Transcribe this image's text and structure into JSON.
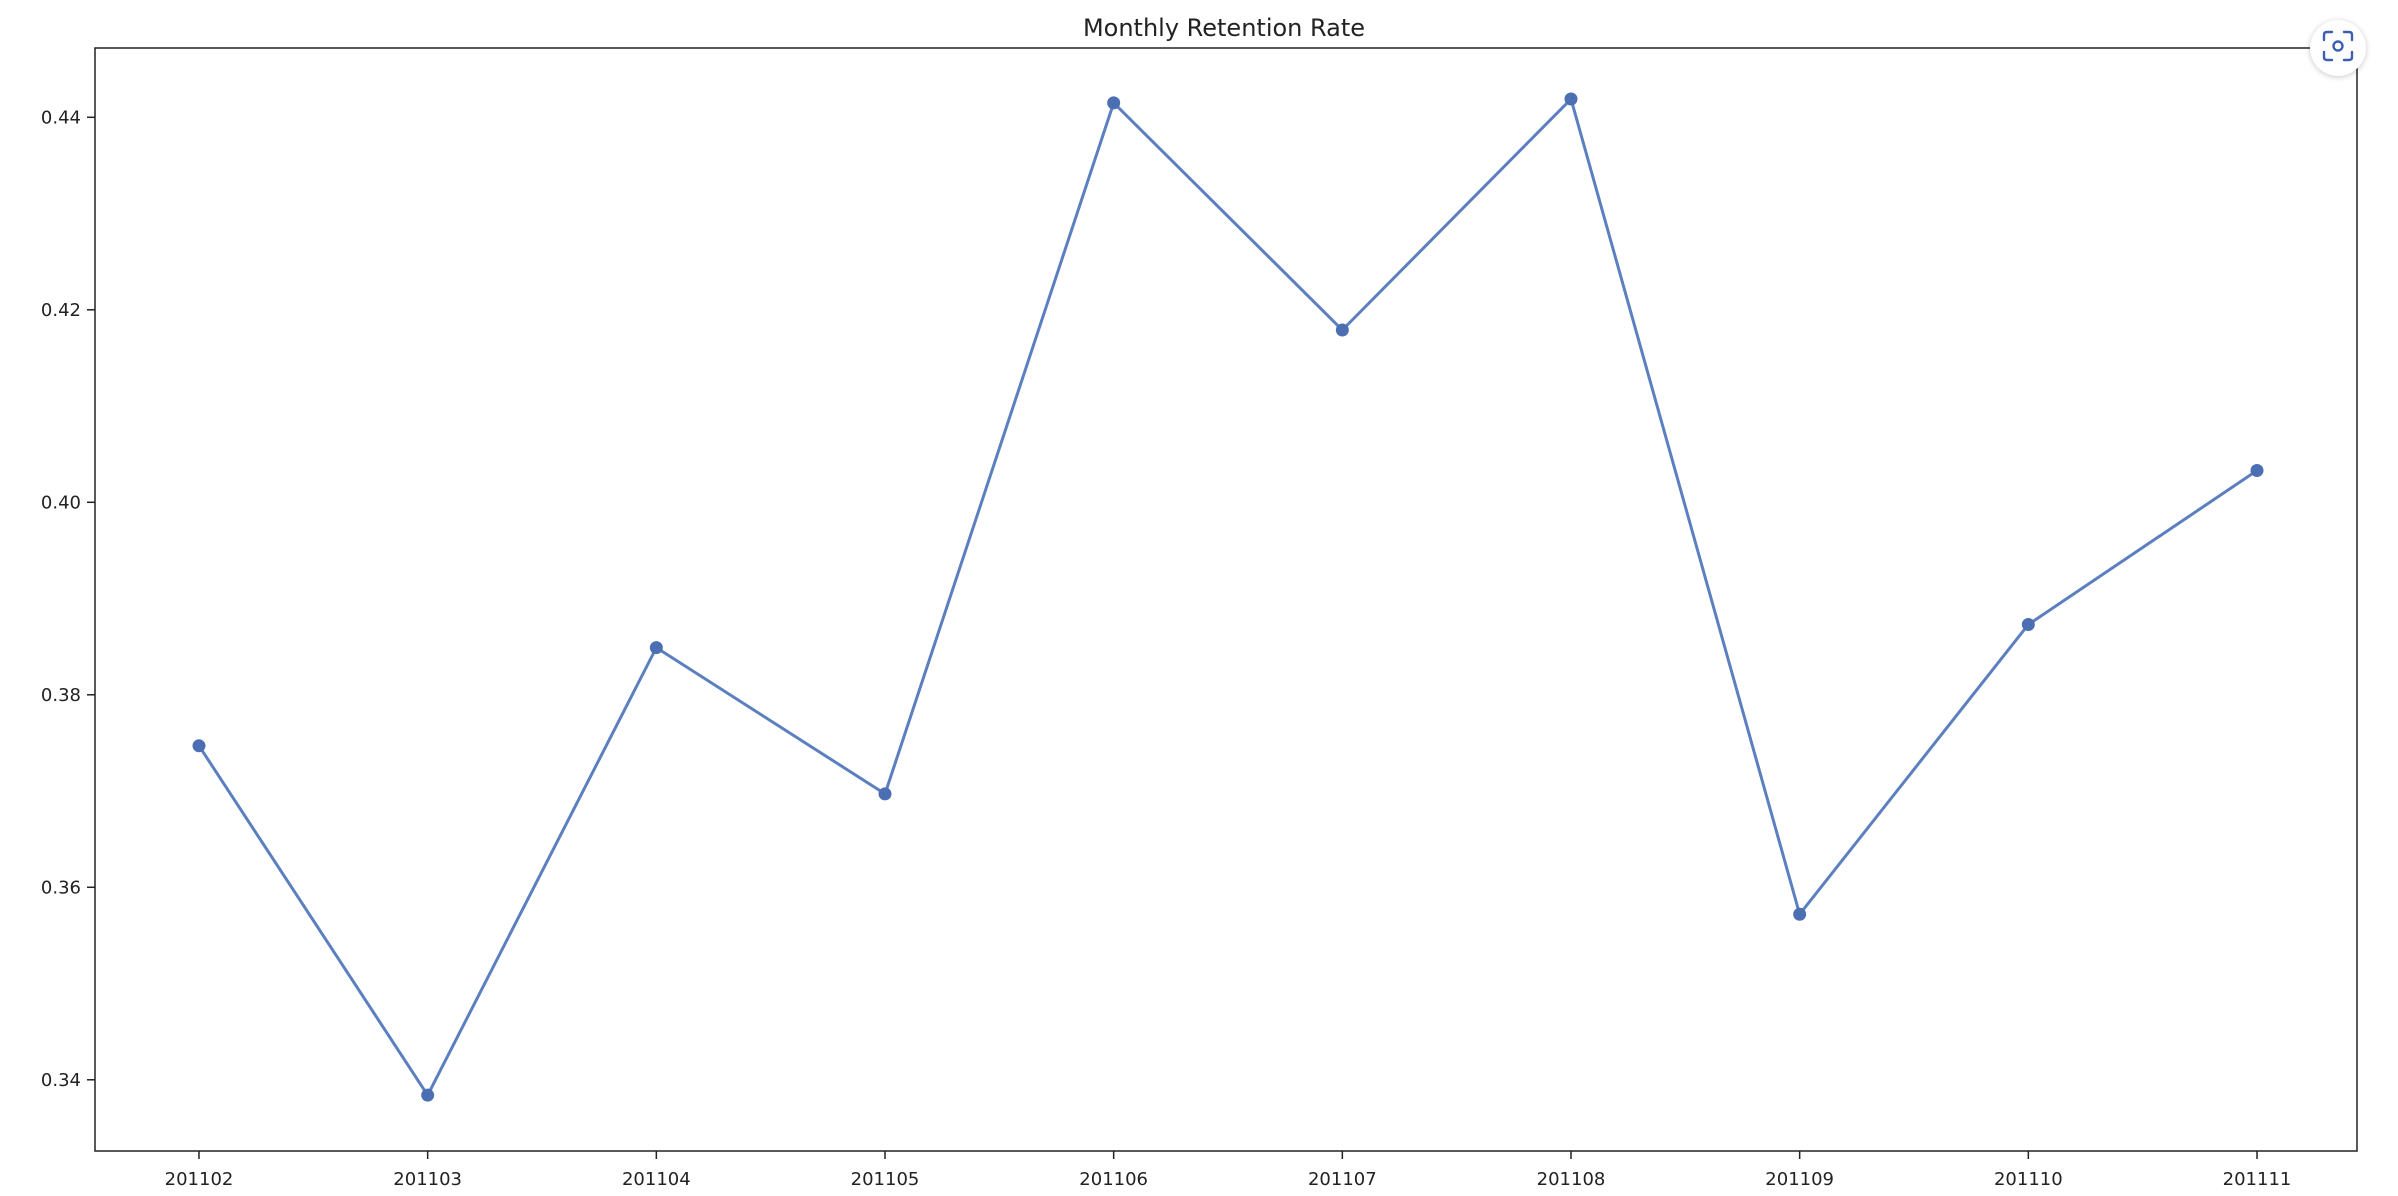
{
  "toolbar": {
    "screenshot_icon": "screenshot-capture-icon",
    "accent_color": "#3c5fb0"
  },
  "chart_data": {
    "type": "line",
    "title": "Monthly Retention Rate",
    "xlabel": "",
    "ylabel": "",
    "categories": [
      "201102",
      "201103",
      "201104",
      "201105",
      "201106",
      "201107",
      "201108",
      "201109",
      "201110",
      "201111"
    ],
    "series": [
      {
        "values": [
          0.3747,
          0.3384,
          0.3849,
          0.3697,
          0.4415,
          0.4179,
          0.4419,
          0.3572,
          0.3873,
          0.4033
        ],
        "color": "#5b7fbf",
        "marker": "circle"
      }
    ],
    "ylim": [
      0.3326,
      0.4472
    ],
    "yticks": [
      0.34,
      0.36,
      0.38,
      0.4,
      0.42,
      0.44
    ],
    "ytick_labels": [
      "0.34",
      "0.36",
      "0.38",
      "0.40",
      "0.42",
      "0.44"
    ],
    "grid": false,
    "legend": "none"
  }
}
